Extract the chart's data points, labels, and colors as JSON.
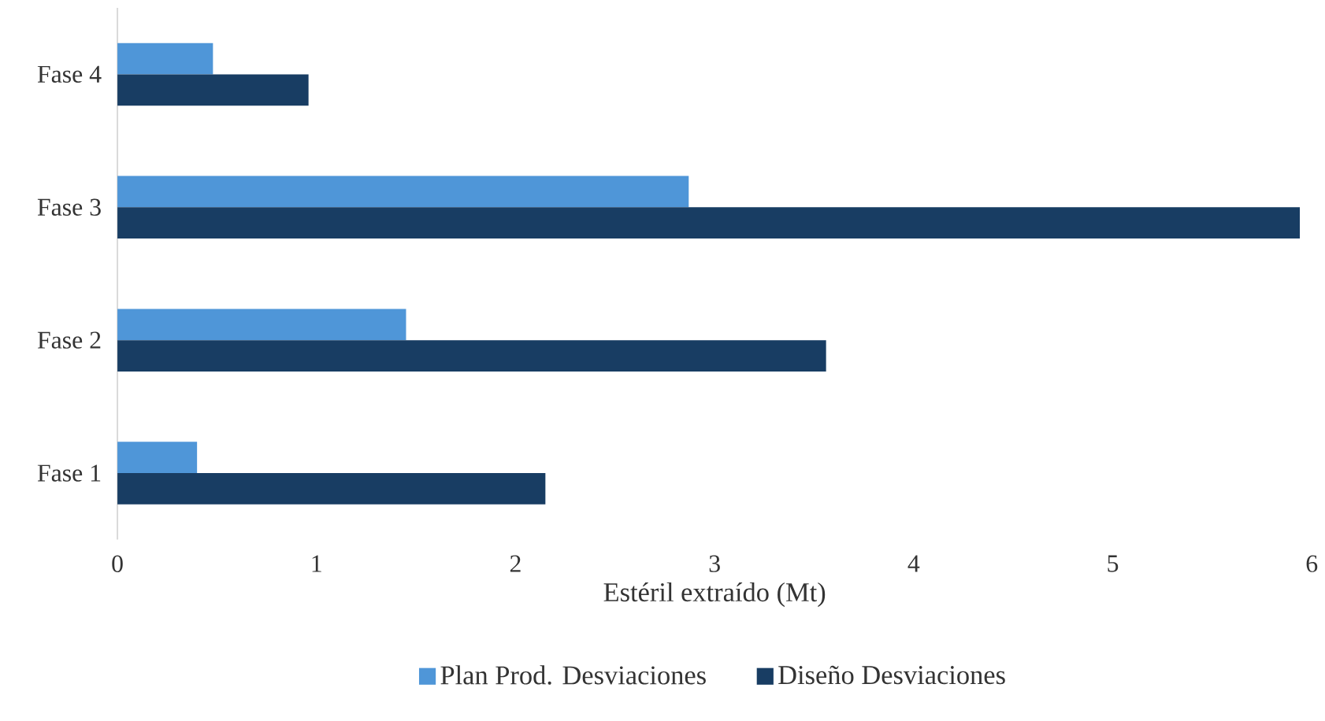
{
  "chart_data": {
    "type": "bar",
    "orientation": "horizontal",
    "xlabel": "Estéril extraído (Mt)",
    "categories": [
      "Fase 4",
      "Fase 3",
      "Fase 2",
      "Fase 1"
    ],
    "series": [
      {
        "name": "Plan Prod. Desviaciones",
        "color": "#4f96d8",
        "values": [
          0.48,
          2.87,
          1.45,
          0.4
        ]
      },
      {
        "name": "Diseño Desviaciones",
        "color": "#183d63",
        "values": [
          0.96,
          5.94,
          3.56,
          2.15
        ]
      }
    ],
    "xlim": [
      0,
      6
    ],
    "xticks": [
      0,
      1,
      2,
      3,
      4,
      5,
      6
    ],
    "grid": false,
    "legend": "bottom"
  }
}
